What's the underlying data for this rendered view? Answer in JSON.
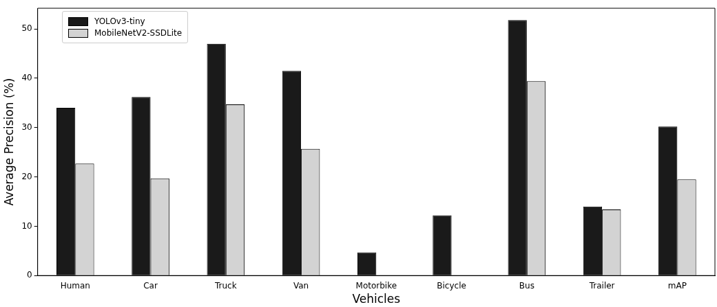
{
  "chart_data": {
    "type": "bar",
    "xlabel": "Vehicles",
    "ylabel": "Average Precision (%)",
    "categories": [
      "Human",
      "Car",
      "Truck",
      "Van",
      "Motorbike",
      "Bicycle",
      "Bus",
      "Trailer",
      "mAP"
    ],
    "series": [
      {
        "name": "YOLOv3-tiny",
        "color": "#1a1a1a",
        "values": [
          34.0,
          36.2,
          47.0,
          41.5,
          4.7,
          12.2,
          51.8,
          14.0,
          30.2
        ]
      },
      {
        "name": "MobileNetV2-SSDLite",
        "color": "#d3d3d3",
        "values": [
          22.7,
          19.7,
          34.7,
          25.7,
          null,
          null,
          39.4,
          13.4,
          19.5
        ]
      }
    ],
    "ylim": [
      0,
      54.2
    ],
    "yticks": [
      0,
      10,
      20,
      30,
      40,
      50
    ],
    "grid": false,
    "legend": "top left"
  }
}
